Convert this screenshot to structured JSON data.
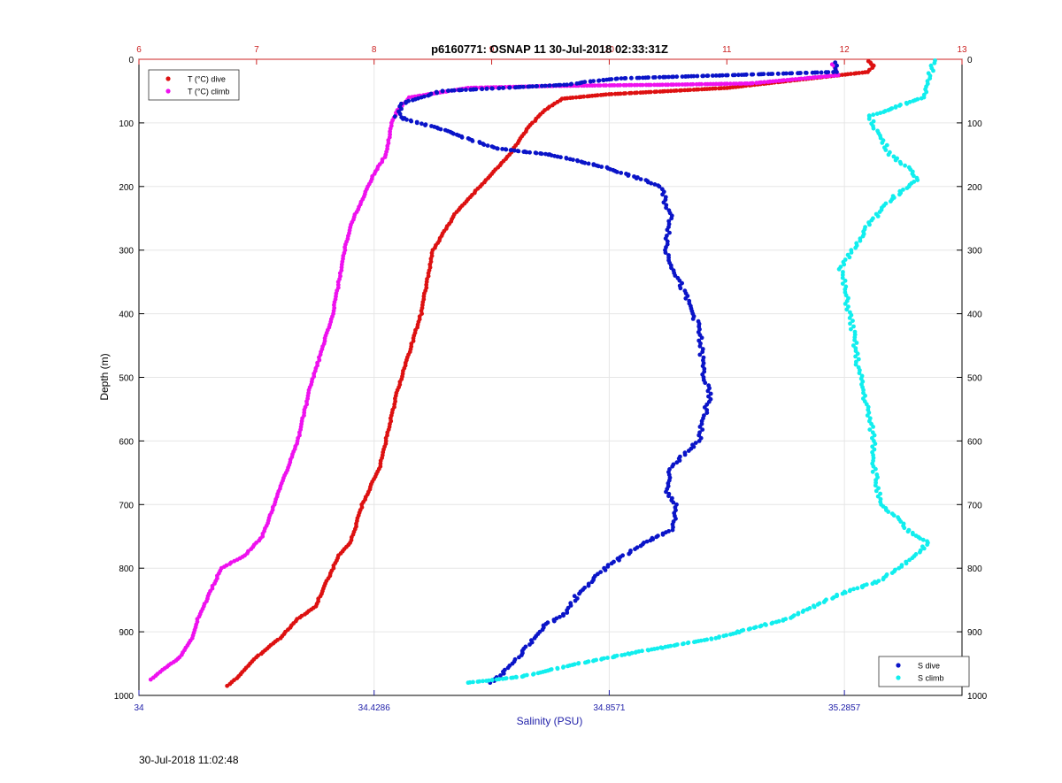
{
  "footer_timestamp": "30-Jul-2018 11:02:48",
  "chart_data": {
    "type": "scatter",
    "title": "p6160771: OSNAP 11 30-Jul-2018 02:33:31Z",
    "ylabel": "Depth (m)",
    "xlabel": "Salinity (PSU)",
    "y_axis": {
      "range": [
        0,
        1000
      ],
      "reversed": true,
      "ticks": [
        0,
        100,
        200,
        300,
        400,
        500,
        600,
        700,
        800,
        900,
        1000
      ],
      "tick_labels": [
        "0",
        "100",
        "200",
        "300",
        "400",
        "500",
        "600",
        "700",
        "800",
        "900",
        "1000"
      ]
    },
    "x_bottom": {
      "range": [
        34,
        35.5
      ],
      "ticks": [
        34,
        34.4286,
        34.8571,
        35.2857
      ],
      "tick_labels": [
        "34",
        "34.4286",
        "34.8571",
        "35.2857"
      ],
      "color": "#2222aa"
    },
    "x_top": {
      "range": [
        6,
        13
      ],
      "ticks": [
        6,
        7,
        8,
        9,
        10,
        11,
        12,
        13
      ],
      "tick_labels": [
        "6",
        "7",
        "8",
        "9",
        "10",
        "11",
        "12",
        "13"
      ],
      "color": "#cc2222"
    },
    "grid": true,
    "legends": [
      {
        "placement": "top-left",
        "entries": [
          "T (°C) dive",
          "T (°C) climb"
        ],
        "colors": [
          "#dd1111",
          "#ee11ee"
        ]
      },
      {
        "placement": "bottom-right",
        "entries": [
          "S dive",
          "S climb"
        ],
        "colors": [
          "#0a14c8",
          "#11eeee"
        ]
      }
    ],
    "series": [
      {
        "name": "T (°C) dive",
        "axis": "top",
        "color": "#dd1111",
        "points": [
          [
            12.2,
            3
          ],
          [
            12.25,
            10
          ],
          [
            12.2,
            20
          ],
          [
            11.0,
            45
          ],
          [
            10.5,
            50
          ],
          [
            10.0,
            55
          ],
          [
            9.6,
            62
          ],
          [
            9.45,
            80
          ],
          [
            9.3,
            110
          ],
          [
            9.15,
            150
          ],
          [
            9.0,
            180
          ],
          [
            8.9,
            200
          ],
          [
            8.7,
            240
          ],
          [
            8.6,
            270
          ],
          [
            8.5,
            300
          ],
          [
            8.45,
            350
          ],
          [
            8.4,
            400
          ],
          [
            8.3,
            460
          ],
          [
            8.2,
            520
          ],
          [
            8.15,
            560
          ],
          [
            8.1,
            600
          ],
          [
            8.05,
            640
          ],
          [
            7.95,
            680
          ],
          [
            7.9,
            700
          ],
          [
            7.8,
            760
          ],
          [
            7.7,
            780
          ],
          [
            7.65,
            800
          ],
          [
            7.55,
            840
          ],
          [
            7.5,
            860
          ],
          [
            7.35,
            880
          ],
          [
            7.2,
            910
          ],
          [
            7.0,
            940
          ],
          [
            6.85,
            970
          ],
          [
            6.75,
            985
          ]
        ]
      },
      {
        "name": "T (°C) climb",
        "axis": "top",
        "color": "#ee11ee",
        "points": [
          [
            11.9,
            8
          ],
          [
            11.95,
            25
          ],
          [
            11.2,
            38
          ],
          [
            10.5,
            40
          ],
          [
            9.5,
            42
          ],
          [
            8.8,
            45
          ],
          [
            8.3,
            60
          ],
          [
            8.2,
            80
          ],
          [
            8.15,
            100
          ],
          [
            8.1,
            150
          ],
          [
            8.0,
            180
          ],
          [
            7.9,
            220
          ],
          [
            7.8,
            260
          ],
          [
            7.75,
            300
          ],
          [
            7.7,
            350
          ],
          [
            7.65,
            400
          ],
          [
            7.55,
            460
          ],
          [
            7.45,
            520
          ],
          [
            7.4,
            560
          ],
          [
            7.35,
            600
          ],
          [
            7.25,
            650
          ],
          [
            7.15,
            700
          ],
          [
            7.05,
            750
          ],
          [
            6.9,
            780
          ],
          [
            6.7,
            800
          ],
          [
            6.6,
            840
          ],
          [
            6.5,
            880
          ],
          [
            6.45,
            910
          ],
          [
            6.35,
            940
          ],
          [
            6.2,
            960
          ],
          [
            6.1,
            975
          ]
        ]
      },
      {
        "name": "S dive",
        "axis": "bottom",
        "color": "#0a14c8",
        "points": [
          [
            35.27,
            5
          ],
          [
            35.27,
            20
          ],
          [
            34.88,
            30
          ],
          [
            34.82,
            35
          ],
          [
            34.78,
            40
          ],
          [
            34.55,
            50
          ],
          [
            34.48,
            70
          ],
          [
            34.47,
            90
          ],
          [
            34.55,
            110
          ],
          [
            34.65,
            140
          ],
          [
            34.75,
            150
          ],
          [
            34.85,
            170
          ],
          [
            34.92,
            190
          ],
          [
            34.95,
            200
          ],
          [
            34.97,
            250
          ],
          [
            34.96,
            300
          ],
          [
            34.98,
            340
          ],
          [
            35.0,
            380
          ],
          [
            35.02,
            420
          ],
          [
            35.03,
            500
          ],
          [
            35.04,
            530
          ],
          [
            35.03,
            560
          ],
          [
            35.02,
            600
          ],
          [
            34.97,
            640
          ],
          [
            34.96,
            680
          ],
          [
            34.98,
            700
          ],
          [
            34.97,
            740
          ],
          [
            34.92,
            760
          ],
          [
            34.85,
            800
          ],
          [
            34.8,
            840
          ],
          [
            34.78,
            870
          ],
          [
            34.74,
            890
          ],
          [
            34.72,
            910
          ],
          [
            34.7,
            930
          ],
          [
            34.67,
            960
          ],
          [
            34.64,
            980
          ]
        ]
      },
      {
        "name": "S climb",
        "axis": "bottom",
        "color": "#11eeee",
        "points": [
          [
            35.45,
            2
          ],
          [
            35.44,
            30
          ],
          [
            35.43,
            60
          ],
          [
            35.33,
            90
          ],
          [
            35.35,
            120
          ],
          [
            35.37,
            150
          ],
          [
            35.4,
            170
          ],
          [
            35.42,
            190
          ],
          [
            35.37,
            220
          ],
          [
            35.33,
            260
          ],
          [
            35.3,
            300
          ],
          [
            35.28,
            330
          ],
          [
            35.29,
            380
          ],
          [
            35.3,
            420
          ],
          [
            35.31,
            480
          ],
          [
            35.32,
            520
          ],
          [
            35.33,
            560
          ],
          [
            35.34,
            600
          ],
          [
            35.34,
            640
          ],
          [
            35.35,
            700
          ],
          [
            35.38,
            720
          ],
          [
            35.4,
            740
          ],
          [
            35.44,
            760
          ],
          [
            35.4,
            790
          ],
          [
            35.35,
            820
          ],
          [
            35.28,
            840
          ],
          [
            35.18,
            880
          ],
          [
            35.05,
            910
          ],
          [
            34.92,
            930
          ],
          [
            34.8,
            950
          ],
          [
            34.7,
            970
          ],
          [
            34.6,
            980
          ]
        ]
      }
    ]
  }
}
